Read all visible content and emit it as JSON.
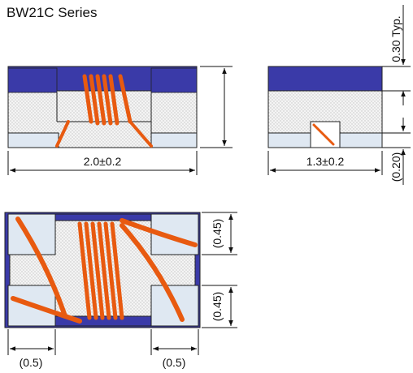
{
  "title": "BW21C Series",
  "dimensions": {
    "length": "2.0±0.2",
    "width": "1.3±0.2",
    "height_typ": "0.30 Typ.",
    "pad_depth": "(0.20)",
    "pad_width_left": "(0.45)",
    "pad_width_right": "(0.45)",
    "pad_length_left": "(0.5)",
    "pad_length_right": "(0.5)"
  },
  "colors": {
    "top_plate": "#3a3aa8",
    "coil": "#e85a10",
    "body_hatch": "#d8d8d8",
    "pad_fill": "#dfe8f2"
  }
}
